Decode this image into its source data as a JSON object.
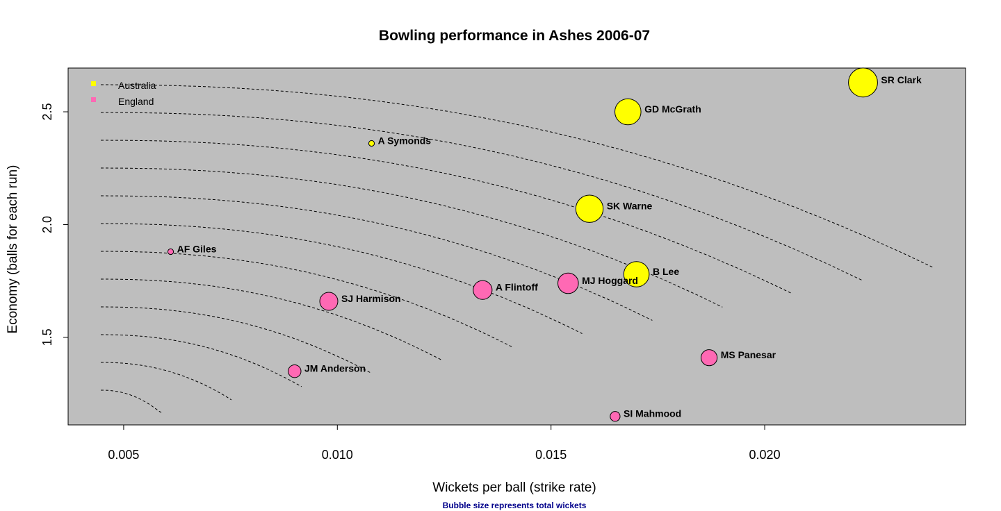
{
  "chart_data": {
    "type": "scatter",
    "title": "Bowling performance in Ashes 2006-07",
    "xlabel": "Wickets per ball (strike rate)",
    "ylabel": "Economy (balls for each run)",
    "caption": "Bubble size represents total wickets",
    "xlim": [
      0.0037,
      0.0247
    ],
    "ylim": [
      1.112,
      2.694
    ],
    "xticks": [
      0.005,
      0.01,
      0.015,
      0.02
    ],
    "xtick_labels": [
      "0.005",
      "0.010",
      "0.015",
      "0.020"
    ],
    "yticks": [
      1.5,
      2.0,
      2.5
    ],
    "ytick_labels": [
      "1.5",
      "2.0",
      "2.5"
    ],
    "grid": false,
    "contours": "dashed",
    "legend_position": "top-left",
    "bubble_size": "total wickets",
    "series": [
      {
        "name": "Australia",
        "color": "#FFFF00",
        "points": [
          {
            "label": "SR Clark",
            "x": 0.0223,
            "y": 2.63,
            "size": 26
          },
          {
            "label": "GD McGrath",
            "x": 0.0168,
            "y": 2.5,
            "size": 21
          },
          {
            "label": "A Symonds",
            "x": 0.0108,
            "y": 2.36,
            "size": 1
          },
          {
            "label": "SK Warne",
            "x": 0.0159,
            "y": 2.07,
            "size": 23
          },
          {
            "label": "B Lee",
            "x": 0.017,
            "y": 1.78,
            "size": 20
          }
        ]
      },
      {
        "name": "England",
        "color": "#FF69B4",
        "points": [
          {
            "label": "AF Giles",
            "x": 0.0061,
            "y": 1.88,
            "size": 1
          },
          {
            "label": "A Flintoff",
            "x": 0.0134,
            "y": 1.71,
            "size": 11
          },
          {
            "label": "MJ Hoggard",
            "x": 0.0154,
            "y": 1.74,
            "size": 13
          },
          {
            "label": "SJ Harmison",
            "x": 0.0098,
            "y": 1.66,
            "size": 10
          },
          {
            "label": "MS Panesar",
            "x": 0.0187,
            "y": 1.41,
            "size": 8
          },
          {
            "label": "JM Anderson",
            "x": 0.009,
            "y": 1.35,
            "size": 5
          },
          {
            "label": "SI Mahmood",
            "x": 0.0165,
            "y": 1.15,
            "size": 3
          }
        ]
      }
    ]
  },
  "style": {
    "plot_background": "#BEBEBE",
    "caption_color": "#00008B",
    "marker_outline": "#000000"
  }
}
